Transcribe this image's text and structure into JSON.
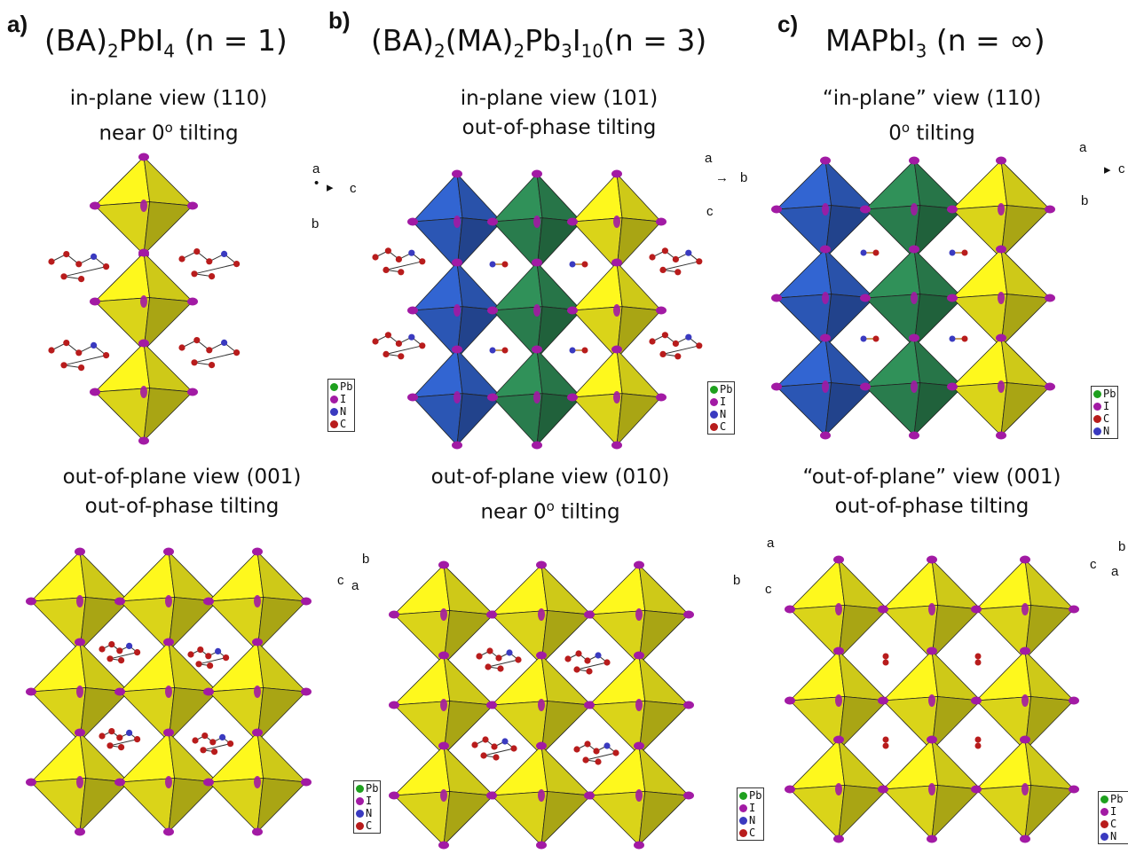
{
  "panels": [
    {
      "letter": "a)",
      "title_main": "(BA)",
      "title_parts": [
        "(BA)",
        "2",
        "PbI",
        "4",
        " (n = 1)"
      ],
      "top_cap1": "in-plane view (110)",
      "top_cap2": "near 0",
      "top_cap2_sup": "o",
      "top_cap2_end": " tilting",
      "bot_cap1": "out-of-plane view (001)",
      "bot_cap2": "out-of-phase tilting",
      "axes_top": {
        "a": "a",
        "b": "b",
        "c": "c"
      },
      "axes_bot": {
        "a": "a",
        "b": "b",
        "c": "c"
      }
    },
    {
      "letter": "b)",
      "title_parts": [
        "(BA)",
        "2",
        "(MA)",
        "2",
        "Pb",
        "3",
        "I",
        "10",
        "(n = 3)"
      ],
      "top_cap1": "in-plane view (101)",
      "top_cap2": "out-of-phase tilting",
      "bot_cap1": "out-of-plane view (010)",
      "bot_cap2": "near 0",
      "bot_cap2_sup": "o",
      "bot_cap2_end": " tilting",
      "axes_top": {
        "a": "a",
        "b": "b",
        "c": "c"
      },
      "axes_bot": {
        "a": "a",
        "b": "b",
        "c": "c"
      }
    },
    {
      "letter": "c)",
      "title_parts": [
        "MAPbI",
        "3",
        " (n = ∞)"
      ],
      "top_cap1": "“in-plane” view (110)",
      "top_cap2": "0",
      "top_cap2_sup": "o",
      "top_cap2_end": " tilting",
      "bot_cap1": "“out-of-plane” view (001)",
      "bot_cap2": "out-of-phase tilting",
      "axes_top": {
        "a": "a",
        "b": "b",
        "c": "c"
      },
      "axes_bot": {
        "a": "a",
        "b": "b",
        "c": "c"
      }
    }
  ],
  "legend": {
    "pb": "Pb",
    "i": "I",
    "n": "N",
    "c": "C"
  },
  "colors": {
    "yellow": "#f2ec1c",
    "blue": "#3060c8",
    "green": "#2e8a55",
    "iodine": "#a21aa4",
    "carbon": "#b81c1c",
    "nitrogen": "#3a3ac0",
    "lead": "#1ea01e"
  },
  "icons": {
    "axis": "axis-triad-icon",
    "legend": "atom-legend-icon"
  }
}
